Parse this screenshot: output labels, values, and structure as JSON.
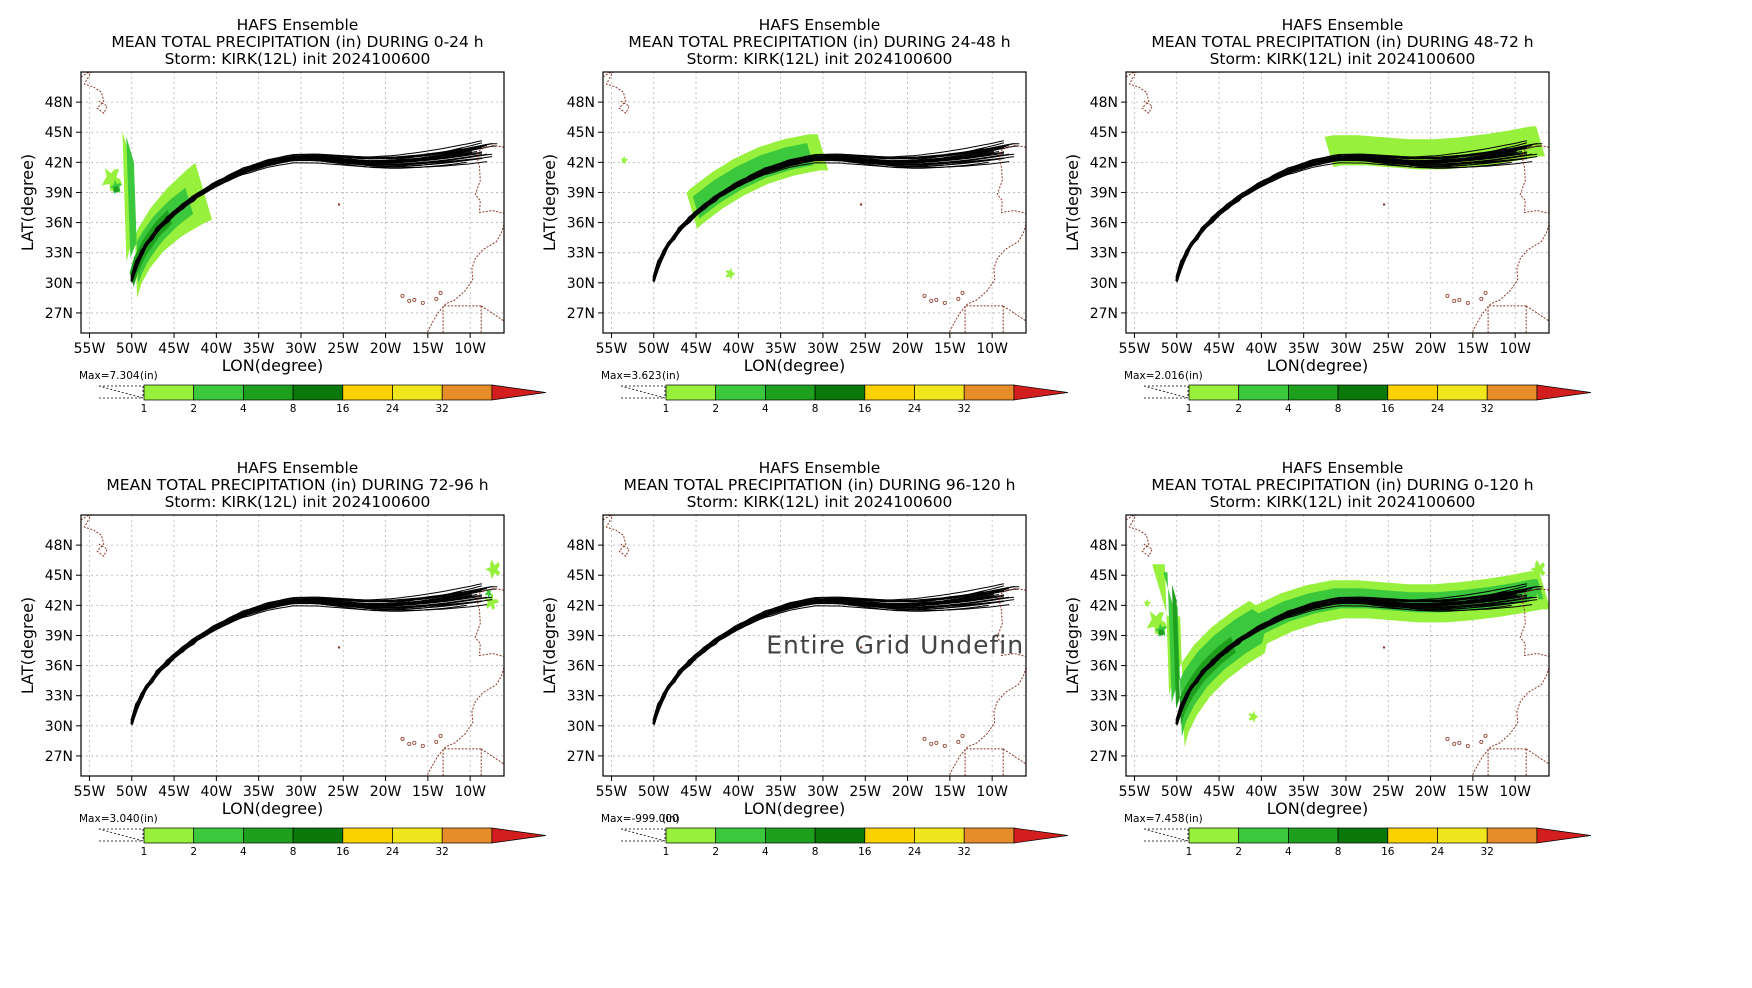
{
  "figure": {
    "colorbar": {
      "unit_label": "(in)",
      "levels": [
        "1",
        "2",
        "4",
        "8",
        "16",
        "24",
        "32"
      ],
      "colors": [
        "#96f03c",
        "#3cc83c",
        "#1ea01e",
        "#0a780a",
        "#fad200",
        "#f0e61e",
        "#e68c28",
        "#d21e1e"
      ]
    },
    "colors": {
      "track": "#000000",
      "coast": "#8b3a2a",
      "grid": "#b4b4b4",
      "precip_1": "#96f03c",
      "precip_2": "#3cc83c",
      "precip_4": "#1ea01e"
    }
  },
  "chart_data": [
    {
      "type": "contour-map",
      "title": [
        "HAFS Ensemble",
        "MEAN TOTAL PRECIPITATION (in) DURING  0-24 h",
        "Storm: KIRK(12L) init 2024100600"
      ],
      "xlabel": "LON(degree)",
      "ylabel": "LAT(degree)",
      "xlim": [
        -56,
        -6
      ],
      "ylim": [
        25,
        51
      ],
      "xticks": [
        "55W",
        "50W",
        "45W",
        "40W",
        "35W",
        "30W",
        "25W",
        "20W",
        "15W",
        "10W"
      ],
      "yticks": [
        "27N",
        "30N",
        "33N",
        "36N",
        "39N",
        "42N",
        "45N",
        "48N"
      ],
      "max_label": "Max=7.304",
      "undefined_text": "",
      "precip_areas": [
        "storm-track-start",
        "azores"
      ]
    },
    {
      "type": "contour-map",
      "title": [
        "HAFS Ensemble",
        "MEAN TOTAL PRECIPITATION (in) DURING 24-48 h",
        "Storm: KIRK(12L) init 2024100600"
      ],
      "xlabel": "LON(degree)",
      "ylabel": "LAT(degree)",
      "xlim": [
        -56,
        -6
      ],
      "ylim": [
        25,
        51
      ],
      "xticks": [
        "55W",
        "50W",
        "45W",
        "40W",
        "35W",
        "30W",
        "25W",
        "20W",
        "15W",
        "10W"
      ],
      "yticks": [
        "27N",
        "30N",
        "33N",
        "36N",
        "39N",
        "42N",
        "45N",
        "48N"
      ],
      "max_label": "Max=3.623",
      "undefined_text": "",
      "precip_areas": [
        "storm-track-middle",
        "small-spots"
      ]
    },
    {
      "type": "contour-map",
      "title": [
        "HAFS Ensemble",
        "MEAN TOTAL PRECIPITATION (in) DURING 48-72 h",
        "Storm: KIRK(12L) init 2024100600"
      ],
      "xlabel": "LON(degree)",
      "ylabel": "LAT(degree)",
      "xlim": [
        -56,
        -6
      ],
      "ylim": [
        25,
        51
      ],
      "xticks": [
        "55W",
        "50W",
        "45W",
        "40W",
        "35W",
        "30W",
        "25W",
        "20W",
        "15W",
        "10W"
      ],
      "yticks": [
        "27N",
        "30N",
        "33N",
        "36N",
        "39N",
        "42N",
        "45N",
        "48N"
      ],
      "max_label": "Max=2.016",
      "undefined_text": "",
      "precip_areas": [
        "storm-track-east"
      ]
    },
    {
      "type": "contour-map",
      "title": [
        "HAFS Ensemble",
        "MEAN TOTAL PRECIPITATION (in) DURING 72-96 h",
        "Storm: KIRK(12L) init 2024100600"
      ],
      "xlabel": "LON(degree)",
      "ylabel": "LAT(degree)",
      "xlim": [
        -56,
        -6
      ],
      "ylim": [
        25,
        51
      ],
      "xticks": [
        "55W",
        "50W",
        "45W",
        "40W",
        "35W",
        "30W",
        "25W",
        "20W",
        "15W",
        "10W"
      ],
      "yticks": [
        "27N",
        "30N",
        "33N",
        "36N",
        "39N",
        "42N",
        "45N",
        "48N"
      ],
      "max_label": "Max=3.040",
      "undefined_text": "",
      "precip_areas": [
        "iberia-coast"
      ]
    },
    {
      "type": "contour-map",
      "title": [
        "HAFS Ensemble",
        "MEAN TOTAL PRECIPITATION (in) DURING 96-120 h",
        "Storm: KIRK(12L) init 2024100600"
      ],
      "xlabel": "LON(degree)",
      "ylabel": "LAT(degree)",
      "xlim": [
        -56,
        -6
      ],
      "ylim": [
        25,
        51
      ],
      "xticks": [
        "55W",
        "50W",
        "45W",
        "40W",
        "35W",
        "30W",
        "25W",
        "20W",
        "15W",
        "10W"
      ],
      "yticks": [
        "27N",
        "30N",
        "33N",
        "36N",
        "39N",
        "42N",
        "45N",
        "48N"
      ],
      "max_label": "Max=-999.000",
      "undefined_text": "Entire Grid Undefined",
      "precip_areas": []
    },
    {
      "type": "contour-map",
      "title": [
        "HAFS Ensemble",
        "MEAN TOTAL PRECIPITATION (in) DURING 0-120 h",
        "Storm: KIRK(12L) init 2024100600"
      ],
      "xlabel": "LON(degree)",
      "ylabel": "LAT(degree)",
      "xlim": [
        -56,
        -6
      ],
      "ylim": [
        25,
        51
      ],
      "xticks": [
        "55W",
        "50W",
        "45W",
        "40W",
        "35W",
        "30W",
        "25W",
        "20W",
        "15W",
        "10W"
      ],
      "yticks": [
        "27N",
        "30N",
        "33N",
        "36N",
        "39N",
        "42N",
        "45N",
        "48N"
      ],
      "max_label": "Max=7.458",
      "undefined_text": "",
      "precip_areas": [
        "storm-track-full",
        "azores",
        "small-spots",
        "iberia-coast"
      ]
    }
  ]
}
